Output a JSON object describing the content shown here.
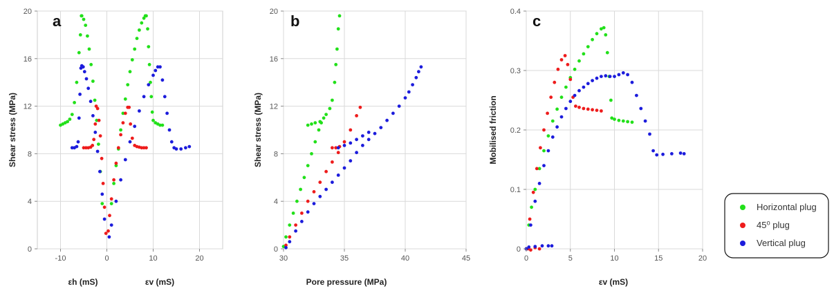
{
  "legend": {
    "entries": [
      {
        "label": "Horizontal plug",
        "color": "#22e01a"
      },
      {
        "label": "45⁰ plug",
        "color": "#ee1c1c"
      },
      {
        "label": "Vertical plug",
        "color": "#1c1cdc"
      }
    ],
    "placement": "right"
  },
  "chart_data": [
    {
      "type": "scatter",
      "panel_label": "a",
      "xlabel_left": "εh (mS)",
      "xlabel_right": "εv (mS)",
      "ylabel": "Shear stress (MPa)",
      "xlim": [
        -15,
        25
      ],
      "ylim": [
        0,
        20
      ],
      "xticks": [
        -10,
        0,
        10,
        20
      ],
      "xtick_labels": [
        "-10",
        "0",
        "10",
        "20"
      ],
      "yticks": [
        0,
        4,
        8,
        12,
        16,
        20
      ],
      "ytick_labels": [
        "0",
        "4",
        "8",
        "12",
        "16",
        "20"
      ],
      "grid": true,
      "series": [
        {
          "name": "Horizontal plug",
          "color": "#22e01a",
          "x": [
            -1.0,
            -1.4,
            -1.8,
            -2.2,
            -2.6,
            -3.0,
            -3.4,
            -3.8,
            -4.2,
            -4.6,
            -5.0,
            -5.4,
            -5.5,
            -5.7,
            -6.0,
            -6.5,
            -7.0,
            -7.5,
            -8.0,
            -8.5,
            -9.0,
            -9.5,
            -10.0,
            1.0,
            1.5,
            2.0,
            2.5,
            3.0,
            3.5,
            4.0,
            4.5,
            5.0,
            5.5,
            6.0,
            6.5,
            7.0,
            7.5,
            8.0,
            8.3,
            8.5,
            8.8,
            9.0,
            9.2,
            9.4,
            9.6,
            9.8,
            10.0,
            10.5,
            11.0,
            11.5,
            12.0
          ],
          "y": [
            3.8,
            6.5,
            8.8,
            10.8,
            12.5,
            14.1,
            15.5,
            16.8,
            17.9,
            18.8,
            19.3,
            19.6,
            19.6,
            18.0,
            16.5,
            14.0,
            12.3,
            11.3,
            10.9,
            10.7,
            10.6,
            10.5,
            10.4,
            3.8,
            5.5,
            7.0,
            8.4,
            10.0,
            11.4,
            12.6,
            13.8,
            14.9,
            15.9,
            16.8,
            17.7,
            18.4,
            19.0,
            19.4,
            19.6,
            19.6,
            18.5,
            17.0,
            15.5,
            14.0,
            12.8,
            11.5,
            10.8,
            10.6,
            10.5,
            10.4,
            10.4
          ]
        },
        {
          "name": "45⁰ plug",
          "color": "#ee1c1c",
          "x": [
            -0.2,
            -0.5,
            -0.8,
            -1.1,
            -1.4,
            -1.7,
            -2.0,
            -2.3,
            -2.5,
            -2.8,
            -3.1,
            -3.5,
            -4.0,
            -4.5,
            -5.0,
            0.3,
            0.6,
            1.0,
            1.5,
            2.0,
            2.5,
            3.0,
            3.5,
            4.0,
            4.5,
            4.8,
            5.1,
            5.5,
            6.0,
            6.5,
            7.0,
            7.5,
            8.0,
            8.5
          ],
          "y": [
            1.3,
            3.5,
            5.5,
            7.6,
            9.5,
            10.8,
            11.8,
            12.0,
            10.5,
            9.2,
            8.7,
            8.55,
            8.5,
            8.5,
            8.5,
            1.5,
            2.8,
            4.2,
            5.8,
            7.2,
            8.5,
            9.6,
            10.6,
            11.4,
            11.9,
            11.9,
            10.5,
            9.3,
            8.7,
            8.6,
            8.55,
            8.5,
            8.5,
            8.5
          ]
        },
        {
          "name": "Vertical plug",
          "color": "#1c1cdc",
          "x": [
            -0.5,
            -1.0,
            -1.5,
            -2.0,
            -2.5,
            -3.0,
            -3.5,
            -4.0,
            -4.4,
            -4.8,
            -5.1,
            -5.4,
            -5.6,
            -5.8,
            -6.0,
            -6.2,
            -6.5,
            -7.0,
            -7.5,
            0.5,
            1.0,
            2.0,
            3.0,
            4.0,
            5.0,
            6.0,
            7.0,
            8.0,
            9.0,
            10.0,
            10.5,
            11.0,
            11.5,
            12.0,
            12.5,
            13.0,
            13.5,
            14.0,
            14.5,
            15.0,
            16.0,
            17.0,
            17.8
          ],
          "y": [
            2.5,
            4.6,
            6.5,
            8.2,
            9.8,
            11.2,
            12.4,
            13.5,
            14.3,
            14.9,
            15.3,
            15.4,
            15.2,
            13.0,
            11.0,
            9.0,
            8.6,
            8.5,
            8.5,
            1.0,
            2.0,
            4.0,
            5.8,
            7.5,
            9.0,
            10.3,
            11.6,
            12.8,
            13.8,
            14.6,
            15.0,
            15.3,
            15.3,
            14.2,
            12.8,
            11.4,
            10.0,
            9.0,
            8.5,
            8.4,
            8.4,
            8.5,
            8.6
          ]
        }
      ]
    },
    {
      "type": "scatter",
      "panel_label": "b",
      "xlabel": "Pore pressure (MPa)",
      "ylabel": "Shear stress (MPa)",
      "xlim": [
        30,
        45
      ],
      "ylim": [
        0,
        20
      ],
      "xticks": [
        30,
        35,
        40,
        45
      ],
      "xtick_labels": [
        "30",
        "35",
        "40",
        "45"
      ],
      "yticks": [
        0,
        4,
        8,
        12,
        16,
        20
      ],
      "ytick_labels": [
        "0",
        "4",
        "8",
        "12",
        "16",
        "20"
      ],
      "grid": true,
      "series": [
        {
          "name": "Horizontal plug",
          "color": "#22e01a",
          "x": [
            30.0,
            30.2,
            30.5,
            30.8,
            31.1,
            31.4,
            31.7,
            32.0,
            32.3,
            32.6,
            32.9,
            33.1,
            33.3,
            33.5,
            33.8,
            34.0,
            34.2,
            34.3,
            34.4,
            34.5,
            34.6,
            32.0,
            32.3,
            32.6,
            33.0
          ],
          "y": [
            0.2,
            1.0,
            2.0,
            3.0,
            4.0,
            5.0,
            6.0,
            7.0,
            8.0,
            9.0,
            10.0,
            10.6,
            11.0,
            11.3,
            11.8,
            12.5,
            14.0,
            15.5,
            16.8,
            18.5,
            19.6,
            10.4,
            10.5,
            10.6,
            10.7
          ]
        },
        {
          "name": "45⁰ plug",
          "color": "#ee1c1c",
          "x": [
            30.2,
            30.5,
            31.0,
            31.5,
            32.0,
            32.5,
            33.0,
            33.5,
            34.0,
            34.5,
            35.0,
            35.5,
            36.0,
            36.3,
            34.0,
            34.3,
            34.6
          ],
          "y": [
            0.3,
            1.0,
            2.0,
            3.0,
            4.0,
            4.8,
            5.6,
            6.5,
            7.3,
            8.1,
            9.0,
            10.0,
            11.2,
            11.9,
            8.5,
            8.5,
            8.6
          ]
        },
        {
          "name": "Vertical plug",
          "color": "#1c1cdc",
          "x": [
            30.2,
            30.5,
            31.0,
            31.5,
            32.0,
            32.5,
            33.0,
            33.5,
            34.0,
            34.5,
            35.0,
            35.5,
            36.0,
            36.5,
            37.0,
            37.5,
            38.0,
            38.5,
            39.0,
            39.5,
            40.0,
            40.3,
            40.6,
            40.9,
            41.1,
            41.3,
            34.5,
            35.0,
            35.5,
            36.0,
            36.5,
            37.0
          ],
          "y": [
            0.1,
            0.6,
            1.5,
            2.3,
            3.1,
            3.8,
            4.4,
            5.0,
            5.6,
            6.2,
            6.8,
            7.4,
            8.1,
            8.7,
            9.2,
            9.7,
            10.2,
            10.8,
            11.4,
            12.0,
            12.7,
            13.2,
            13.8,
            14.4,
            14.9,
            15.3,
            8.5,
            8.7,
            8.9,
            9.2,
            9.5,
            9.8
          ]
        }
      ]
    },
    {
      "type": "scatter",
      "panel_label": "c",
      "xlabel": "εv (mS)",
      "ylabel": "Mobilised friction",
      "xlim": [
        0,
        20
      ],
      "ylim": [
        0,
        0.4
      ],
      "xticks": [
        0,
        5,
        10,
        15,
        20
      ],
      "xtick_labels": [
        "0",
        "5",
        "10",
        "15",
        "20"
      ],
      "yticks": [
        0,
        0.1,
        0.2,
        0.3,
        0.4
      ],
      "ytick_labels": [
        "0",
        "0.1",
        "0.2",
        "0.3",
        "0.4"
      ],
      "grid": true,
      "series": [
        {
          "name": "Horizontal plug",
          "color": "#22e01a",
          "x": [
            0,
            0.3,
            0.6,
            1.0,
            1.5,
            2.0,
            2.5,
            3.0,
            3.5,
            4.0,
            4.5,
            5.0,
            5.5,
            6.0,
            6.5,
            7.0,
            7.5,
            8.0,
            8.5,
            8.8,
            9.0,
            9.2,
            9.4,
            9.6,
            9.7,
            10.0,
            10.5,
            11.0,
            11.5,
            12.0
          ],
          "y": [
            0,
            0.04,
            0.07,
            0.1,
            0.135,
            0.165,
            0.19,
            0.215,
            0.235,
            0.255,
            0.272,
            0.288,
            0.302,
            0.316,
            0.328,
            0.34,
            0.352,
            0.362,
            0.37,
            0.372,
            0.36,
            0.33,
            0.29,
            0.25,
            0.22,
            0.218,
            0.216,
            0.215,
            0.214,
            0.213
          ]
        },
        {
          "name": "45⁰ plug",
          "color": "#ee1c1c",
          "x": [
            0,
            0.4,
            0.8,
            1.2,
            1.6,
            2.0,
            2.4,
            2.8,
            3.2,
            3.6,
            4.0,
            4.4,
            4.7,
            5.0,
            5.3,
            5.6,
            6.0,
            6.5,
            7.0,
            7.5,
            8.0,
            8.5,
            0.2,
            0.5,
            1.0,
            1.5
          ],
          "y": [
            0,
            0.05,
            0.095,
            0.135,
            0.17,
            0.2,
            0.228,
            0.255,
            0.28,
            0.302,
            0.318,
            0.325,
            0.31,
            0.285,
            0.255,
            0.24,
            0.238,
            0.236,
            0.235,
            0.234,
            0.233,
            0.232,
            0,
            -0.002,
            0.002,
            0
          ]
        },
        {
          "name": "Vertical plug",
          "color": "#1c1cdc",
          "x": [
            0,
            0.5,
            1.0,
            1.5,
            2.0,
            2.5,
            3.0,
            3.5,
            4.0,
            4.5,
            5.0,
            5.5,
            6.0,
            6.5,
            7.0,
            7.5,
            8.0,
            8.5,
            9.0,
            9.5,
            10.0,
            10.5,
            11.0,
            11.5,
            12.0,
            12.5,
            13.0,
            13.5,
            14.0,
            14.4,
            14.8,
            15.5,
            16.5,
            17.5,
            17.9,
            0.3,
            1.0,
            1.8,
            2.5,
            2.9
          ],
          "y": [
            0,
            0.04,
            0.08,
            0.11,
            0.14,
            0.165,
            0.188,
            0.205,
            0.222,
            0.236,
            0.248,
            0.258,
            0.266,
            0.272,
            0.278,
            0.283,
            0.287,
            0.29,
            0.291,
            0.29,
            0.29,
            0.293,
            0.296,
            0.293,
            0.28,
            0.258,
            0.236,
            0.215,
            0.193,
            0.165,
            0.158,
            0.159,
            0.16,
            0.161,
            0.16,
            0.003,
            0.004,
            0.005,
            0.005,
            0.005
          ]
        }
      ]
    }
  ]
}
